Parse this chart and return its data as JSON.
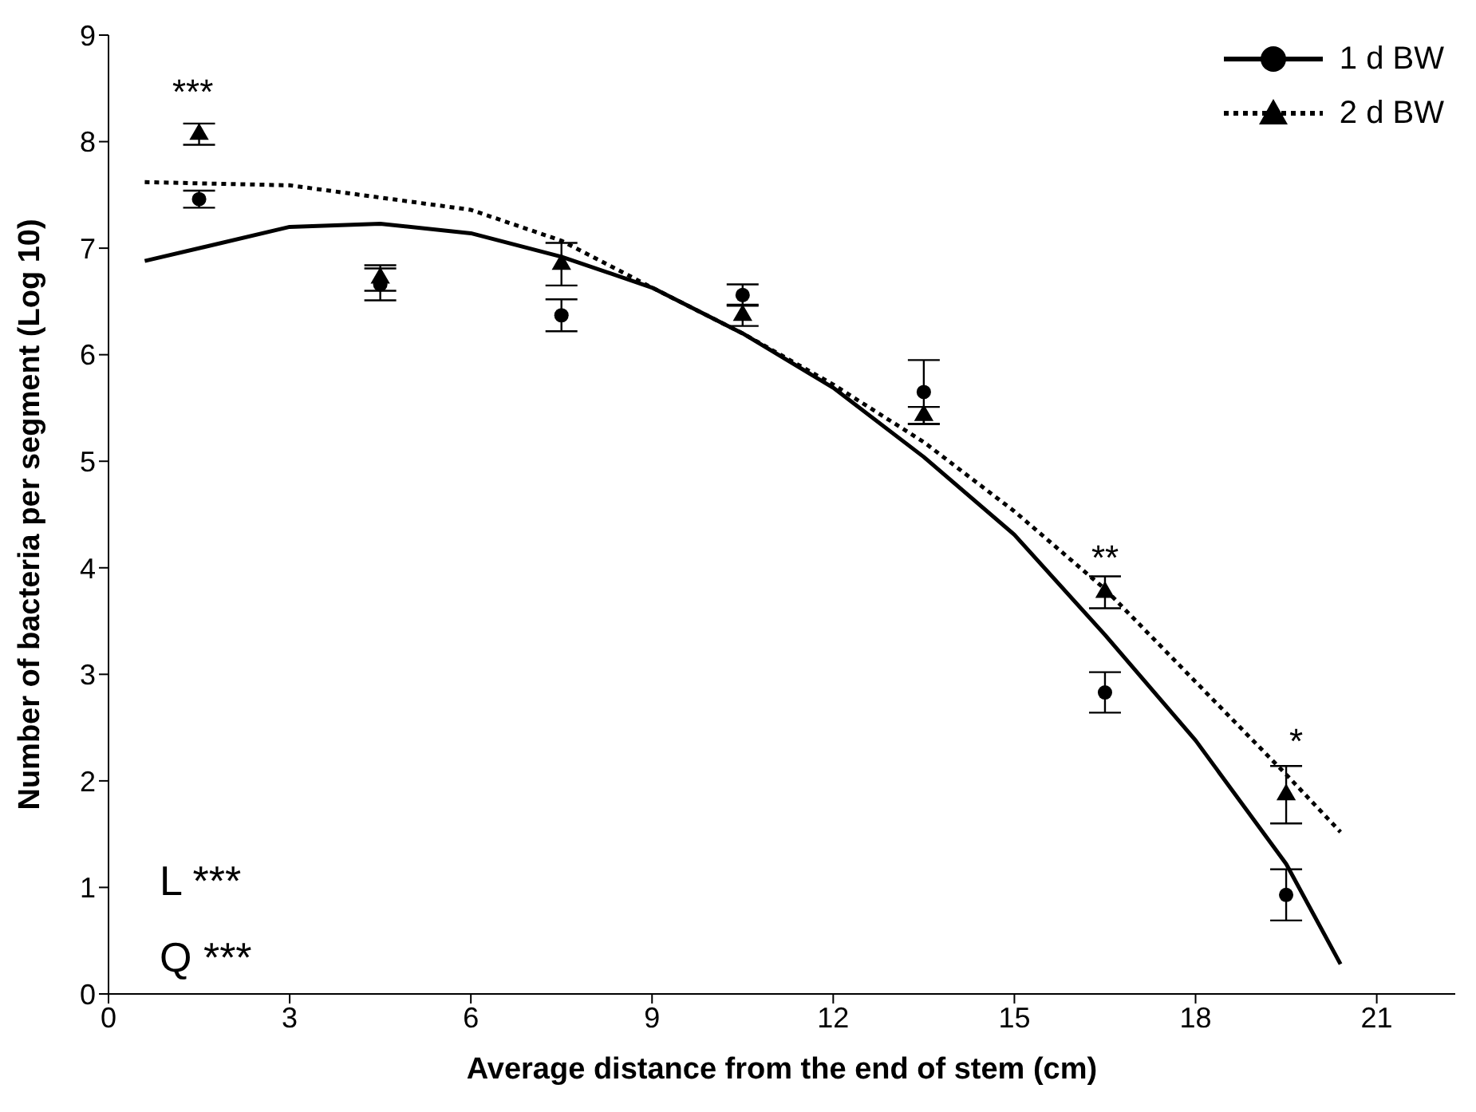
{
  "chart_data": {
    "type": "scatter",
    "xlabel": "Average distance from the end of stem (cm)",
    "ylabel": "Number of bacteria per segment (Log 10)",
    "xlim": [
      0,
      22.3
    ],
    "xticks": [
      0,
      3,
      6,
      9,
      12,
      15,
      18,
      21
    ],
    "ylim": [
      0,
      9
    ],
    "yticks": [
      0,
      1,
      2,
      3,
      4,
      5,
      6,
      7,
      8,
      9
    ],
    "grid": false,
    "legend": "top right",
    "series": [
      {
        "name": "1 d BW",
        "color": "#000000",
        "marker": "circle",
        "line_style": "solid",
        "x": [
          1.5,
          4.5,
          7.5,
          10.5,
          13.5,
          16.5,
          19.5
        ],
        "values": [
          7.46,
          6.66,
          6.37,
          6.56,
          5.65,
          2.83,
          0.93
        ],
        "errors": [
          0.08,
          0.15,
          0.15,
          0.1,
          0.3,
          0.19,
          0.24
        ]
      },
      {
        "name": "2 d BW",
        "color": "#000000",
        "marker": "triangle",
        "line_style": "dotted",
        "x": [
          1.5,
          4.5,
          7.5,
          10.5,
          13.5,
          16.5,
          19.5
        ],
        "values": [
          8.07,
          6.72,
          6.85,
          6.37,
          5.43,
          3.77,
          1.87
        ],
        "errors": [
          0.1,
          0.12,
          0.2,
          0.1,
          0.08,
          0.15,
          0.27
        ]
      },
      {
        "type": "line",
        "color": "#000000",
        "line_style": "solid",
        "marker": "none",
        "x": [
          0.6,
          3,
          4.5,
          6,
          7.5,
          9,
          10.5,
          12,
          13.5,
          15,
          16.5,
          18,
          19.5,
          20.4
        ],
        "values": [
          6.88,
          7.2,
          7.23,
          7.14,
          6.92,
          6.63,
          6.2,
          5.69,
          5.04,
          4.31,
          3.37,
          2.38,
          1.22,
          0.28
        ]
      },
      {
        "type": "line",
        "color": "#000000",
        "line_style": "dotted",
        "marker": "none",
        "x": [
          0.6,
          3,
          6,
          7.5,
          9,
          10.5,
          12,
          13.5,
          15,
          16.5,
          18,
          19.5,
          20.4
        ],
        "values": [
          7.62,
          7.59,
          7.36,
          7.07,
          6.63,
          6.2,
          5.72,
          5.18,
          4.53,
          3.8,
          2.93,
          2.06,
          1.52
        ]
      }
    ],
    "annotations": [
      "***",
      "**",
      "*",
      "L ***",
      "Q ***"
    ]
  }
}
